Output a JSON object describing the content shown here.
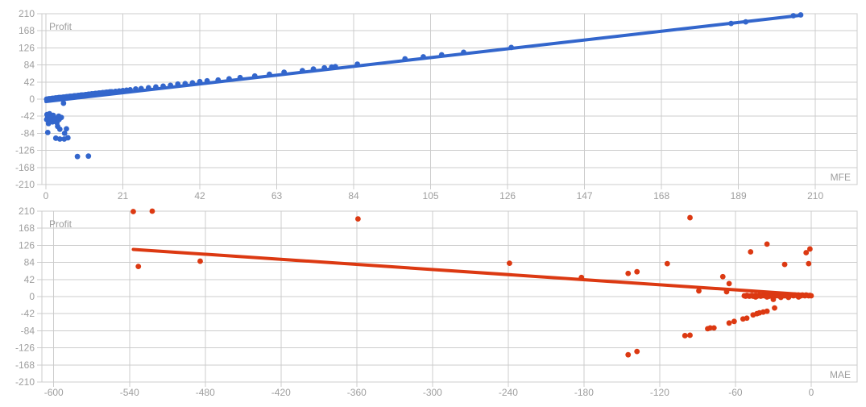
{
  "page": {
    "background": "#ffffff"
  },
  "styles": {
    "grid_color": "#cccccc",
    "label_color": "#9e9e9e",
    "blue_series": "#3366cc",
    "red_series": "#dc3912"
  },
  "chart_data": [
    {
      "id": "mfe-profit",
      "type": "scatter",
      "title": "Profit",
      "xlabel": "MFE",
      "ylabel": "Profit",
      "color": "#3366cc",
      "grid": true,
      "legend": "none",
      "x_ticks": [
        0,
        21,
        42,
        63,
        84,
        105,
        126,
        147,
        168,
        189,
        210
      ],
      "y_ticks": [
        210,
        168,
        126,
        84,
        42,
        0,
        -42,
        -84,
        -126,
        -168,
        -210
      ],
      "xlim": [
        -1.1,
        221.4
      ],
      "ylim": [
        -210,
        210
      ],
      "trendline": {
        "x1": 0,
        "y1": -6,
        "x2": 206,
        "y2": 206
      },
      "points": [
        [
          0.2,
          0
        ],
        [
          0.5,
          0
        ],
        [
          0.8,
          1
        ],
        [
          1.1,
          1
        ],
        [
          1.4,
          1
        ],
        [
          1.7,
          2
        ],
        [
          2,
          2
        ],
        [
          2.3,
          2
        ],
        [
          2.6,
          3
        ],
        [
          2.9,
          3
        ],
        [
          3.2,
          3
        ],
        [
          3.5,
          4
        ],
        [
          3.8,
          4
        ],
        [
          4.1,
          4
        ],
        [
          4.4,
          4
        ],
        [
          4.7,
          5
        ],
        [
          5,
          5
        ],
        [
          5.3,
          5
        ],
        [
          5.6,
          6
        ],
        [
          5.9,
          6
        ],
        [
          6.2,
          6
        ],
        [
          6.5,
          7
        ],
        [
          6.8,
          7
        ],
        [
          7.1,
          7
        ],
        [
          7.4,
          7
        ],
        [
          7.7,
          8
        ],
        [
          8,
          8
        ],
        [
          8.4,
          8
        ],
        [
          8.8,
          9
        ],
        [
          9.2,
          9
        ],
        [
          9.6,
          10
        ],
        [
          10,
          10
        ],
        [
          10.4,
          10
        ],
        [
          10.8,
          11
        ],
        [
          11.2,
          11
        ],
        [
          11.6,
          12
        ],
        [
          12,
          12
        ],
        [
          12.5,
          13
        ],
        [
          13,
          13
        ],
        [
          13.5,
          14
        ],
        [
          14,
          14
        ],
        [
          14.5,
          15
        ],
        [
          15,
          15
        ],
        [
          15.5,
          16
        ],
        [
          16,
          16
        ],
        [
          16.5,
          17
        ],
        [
          17,
          17
        ],
        [
          17.5,
          18
        ],
        [
          18,
          18
        ],
        [
          19,
          19
        ],
        [
          20,
          20
        ],
        [
          21,
          21
        ],
        [
          22,
          22
        ],
        [
          23,
          23
        ],
        [
          24.5,
          25
        ],
        [
          26,
          26
        ],
        [
          28,
          28
        ],
        [
          30,
          30
        ],
        [
          32,
          32
        ],
        [
          34,
          34
        ],
        [
          36,
          37
        ],
        [
          38,
          38
        ],
        [
          40,
          40
        ],
        [
          42,
          43
        ],
        [
          44,
          45
        ],
        [
          47,
          47
        ],
        [
          50,
          50
        ],
        [
          53,
          53
        ],
        [
          57,
          57
        ],
        [
          61,
          61
        ],
        [
          65,
          66
        ],
        [
          70,
          70
        ],
        [
          73,
          74
        ],
        [
          76,
          77
        ],
        [
          78,
          79
        ],
        [
          79,
          80
        ],
        [
          85,
          86
        ],
        [
          98,
          99
        ],
        [
          103,
          104
        ],
        [
          108,
          109
        ],
        [
          114,
          115
        ],
        [
          127,
          127
        ],
        [
          187,
          186
        ],
        [
          191,
          190
        ],
        [
          204,
          205
        ],
        [
          206,
          207
        ],
        [
          4.8,
          -10
        ],
        [
          0.3,
          -38
        ],
        [
          1,
          -36
        ],
        [
          2,
          -40
        ],
        [
          0.5,
          -44
        ],
        [
          1.5,
          -46
        ],
        [
          0.2,
          -50
        ],
        [
          1,
          -52
        ],
        [
          2.5,
          -48
        ],
        [
          3.5,
          -42
        ],
        [
          1.8,
          -56
        ],
        [
          3,
          -58
        ],
        [
          0.7,
          -60
        ],
        [
          3.6,
          -50
        ],
        [
          4.2,
          -45
        ],
        [
          3.2,
          -67
        ],
        [
          3.8,
          -74
        ],
        [
          5.6,
          -73
        ],
        [
          5.1,
          -84
        ],
        [
          0.5,
          -82
        ],
        [
          2.7,
          -96
        ],
        [
          3.8,
          -98
        ],
        [
          5,
          -98
        ],
        [
          6,
          -95
        ],
        [
          8.6,
          -141
        ],
        [
          11.6,
          -140
        ]
      ]
    },
    {
      "id": "mae-profit",
      "type": "scatter",
      "title": "Profit",
      "xlabel": "MAE",
      "ylabel": "Profit",
      "color": "#dc3912",
      "grid": true,
      "legend": "none",
      "x_ticks": [
        -600,
        -540,
        -480,
        -420,
        -360,
        -300,
        -240,
        -180,
        -120,
        -60,
        0
      ],
      "y_ticks": [
        210,
        168,
        126,
        84,
        42,
        0,
        -42,
        -84,
        -126,
        -168,
        -210
      ],
      "xlim": [
        -609.4,
        36.4
      ],
      "ylim": [
        -210,
        210
      ],
      "trendline": {
        "x1": -537,
        "y1": 116,
        "x2": 0,
        "y2": 4
      },
      "points": [
        [
          -537,
          209
        ],
        [
          -522,
          210
        ],
        [
          -533,
          74
        ],
        [
          -484,
          87
        ],
        [
          -359,
          191
        ],
        [
          -239,
          82
        ],
        [
          -182,
          47
        ],
        [
          -145,
          57
        ],
        [
          -138,
          61
        ],
        [
          -114,
          81
        ],
        [
          -96,
          194
        ],
        [
          -48,
          110
        ],
        [
          -35,
          129
        ],
        [
          -21,
          79
        ],
        [
          -4,
          108
        ],
        [
          -1,
          117
        ],
        [
          -2,
          81
        ],
        [
          -70,
          49
        ],
        [
          -65,
          32
        ],
        [
          -67,
          12
        ],
        [
          -89,
          14
        ],
        [
          -145,
          -143
        ],
        [
          -138,
          -135
        ],
        [
          -100,
          -96
        ],
        [
          -96,
          -95
        ],
        [
          -82,
          -79
        ],
        [
          -80,
          -77
        ],
        [
          -77,
          -77
        ],
        [
          -65,
          -65
        ],
        [
          -61,
          -61
        ],
        [
          -54,
          -55
        ],
        [
          -51,
          -53
        ],
        [
          -46,
          -45
        ],
        [
          -43,
          -42
        ],
        [
          -41,
          -40
        ],
        [
          -38,
          -38
        ],
        [
          -35,
          -36
        ],
        [
          -29,
          -28
        ],
        [
          -30,
          -7
        ],
        [
          -53,
          2
        ],
        [
          -52,
          1
        ],
        [
          -51,
          3
        ],
        [
          -50,
          2
        ],
        [
          -49,
          1
        ],
        [
          -48,
          2
        ],
        [
          -47,
          3
        ],
        [
          -46,
          1
        ],
        [
          -45,
          2
        ],
        [
          -44,
          3
        ],
        [
          -43,
          1
        ],
        [
          -42,
          2
        ],
        [
          -41,
          3
        ],
        [
          -40,
          1
        ],
        [
          -39,
          2
        ],
        [
          -38,
          3
        ],
        [
          -37,
          2
        ],
        [
          -36,
          4
        ],
        [
          -35,
          2
        ],
        [
          -34,
          3
        ],
        [
          -33,
          1
        ],
        [
          -32,
          2
        ],
        [
          -31,
          4
        ],
        [
          -30,
          2
        ],
        [
          -29,
          3
        ],
        [
          -28,
          2
        ],
        [
          -27,
          4
        ],
        [
          -26,
          2
        ],
        [
          -25,
          3
        ],
        [
          -24,
          5
        ],
        [
          -23,
          2
        ],
        [
          -22,
          3
        ],
        [
          -21,
          2
        ],
        [
          -20,
          4
        ],
        [
          -19,
          2
        ],
        [
          -18,
          3
        ],
        [
          -17,
          2
        ],
        [
          -16,
          4
        ],
        [
          -15,
          3
        ],
        [
          -14,
          2
        ],
        [
          -13,
          4
        ],
        [
          -12,
          3
        ],
        [
          -11,
          2
        ],
        [
          -10,
          4
        ],
        [
          -9,
          3
        ],
        [
          -8,
          2
        ],
        [
          -7,
          4
        ],
        [
          -6,
          3
        ],
        [
          -5,
          2
        ],
        [
          -4,
          4
        ],
        [
          -3,
          3
        ],
        [
          -2,
          2
        ],
        [
          -1,
          3
        ],
        [
          0,
          2
        ],
        [
          -24,
          -2
        ],
        [
          -35,
          -1
        ],
        [
          -18,
          -2
        ],
        [
          -10,
          -1
        ],
        [
          -44,
          -1
        ]
      ]
    }
  ]
}
